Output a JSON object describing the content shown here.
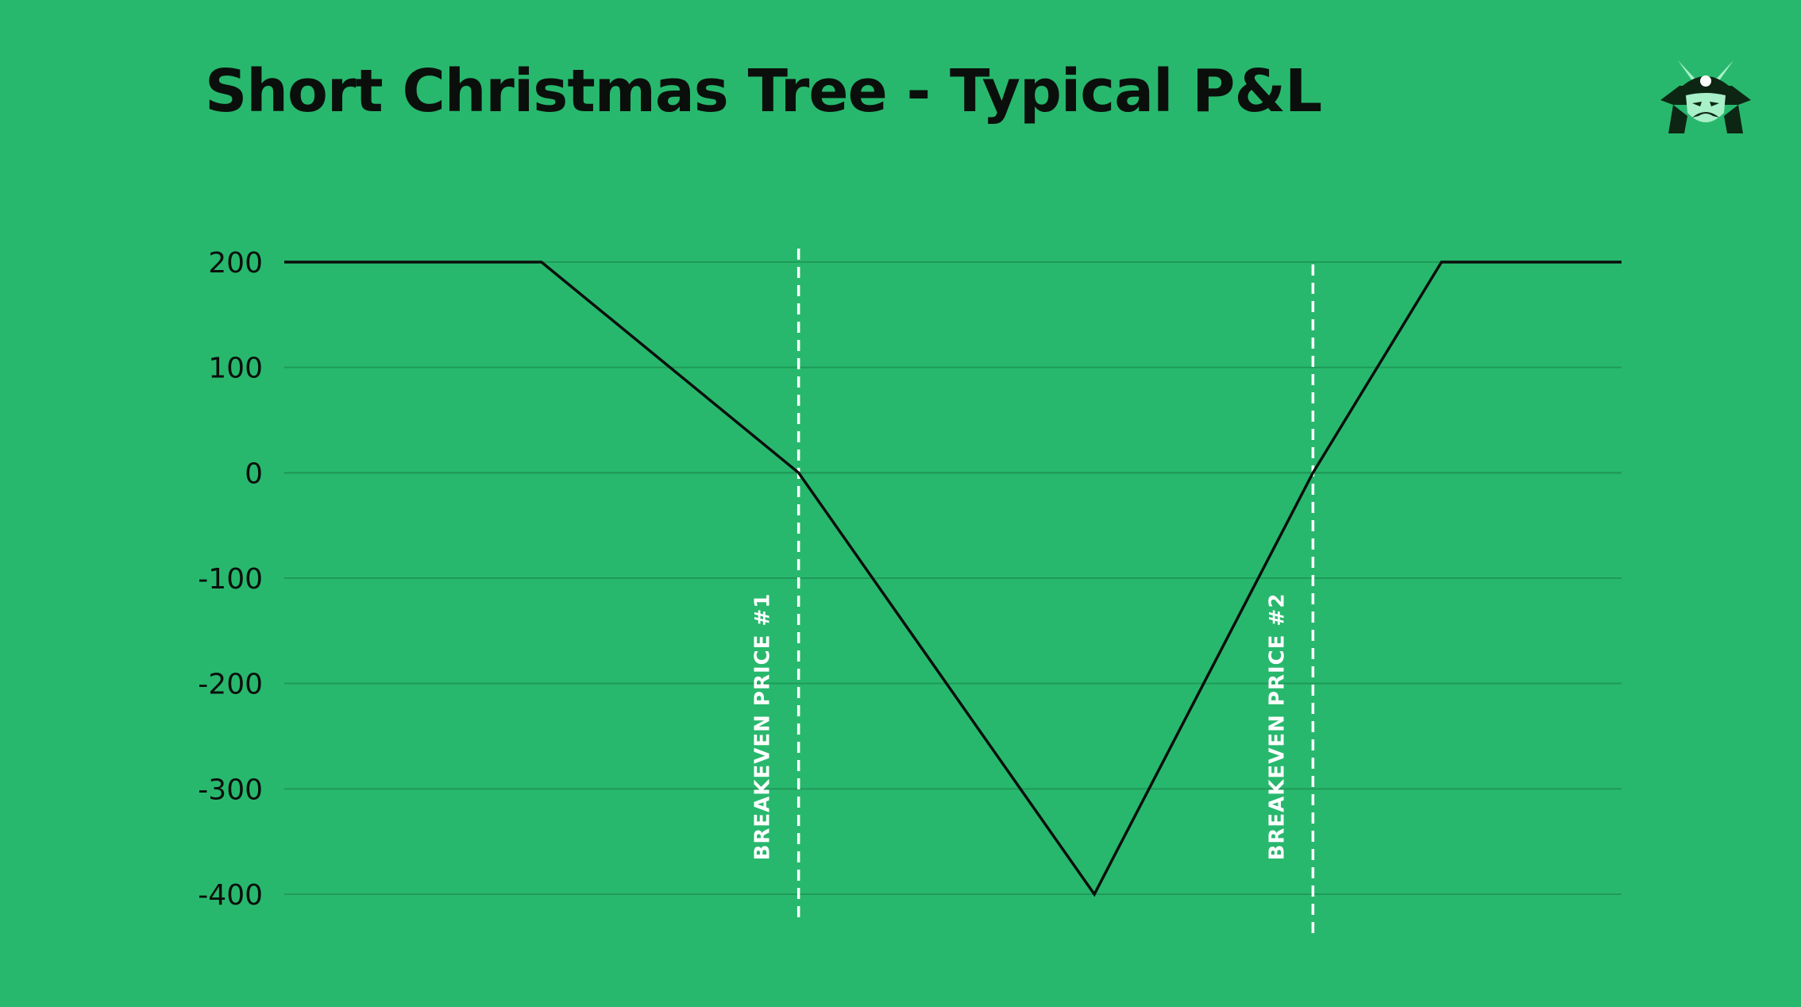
{
  "header": {
    "title": "Short Christmas Tree - Typical P&L"
  },
  "logo": {
    "icon": "samurai-helmet-icon"
  },
  "colors": {
    "background": "#28b86d",
    "line": "#0b0f0c",
    "grid": "#1f9a59",
    "annotation": "#ffffff"
  },
  "chart_data": {
    "type": "line",
    "title": "Short Christmas Tree - Typical P&L",
    "xlabel": "",
    "ylabel": "",
    "ylim": [
      -400,
      200
    ],
    "yticks": [
      200,
      100,
      0,
      -100,
      -200,
      -300,
      -400
    ],
    "grid": true,
    "x": [
      0,
      1,
      2,
      3.15,
      4,
      4.5,
      5.2
    ],
    "series": [
      {
        "values": [
          200,
          200,
          0,
          -400,
          0,
          200,
          200
        ]
      }
    ],
    "annotations": [
      {
        "label": "BREAKEVEN PRICE #1",
        "x": 2,
        "style": "dashed-vertical"
      },
      {
        "label": "BREAKEVEN PRICE #2",
        "x": 4,
        "style": "dashed-vertical"
      }
    ]
  }
}
